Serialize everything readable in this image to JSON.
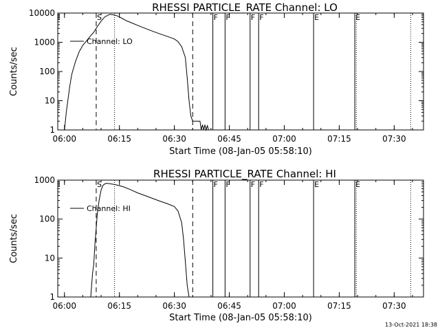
{
  "chart_data": [
    {
      "type": "line",
      "title": "RHESSI PARTICLE_RATE Channel: LO",
      "xlabel": "Start Time (08-Jan-05 05:58:10)",
      "ylabel": "Counts/sec",
      "ylog": true,
      "xlim": [
        "05:58:10",
        "07:38:00"
      ],
      "ylim": [
        1,
        10000
      ],
      "xticks": [
        "06:00",
        "06:15",
        "06:30",
        "06:45",
        "07:00",
        "07:15",
        "07:30"
      ],
      "yticks": [
        "1",
        "10",
        "100",
        "1000",
        "10000"
      ],
      "legend": {
        "entries": [
          "Channel: LO"
        ],
        "placement": "top-left"
      },
      "series": [
        {
          "name": "Channel: LO",
          "x": [
            "06:00:00",
            "06:00:30",
            "06:01:00",
            "06:01:30",
            "06:02:00",
            "06:03:00",
            "06:04:00",
            "06:05:00",
            "06:06:00",
            "06:07:00",
            "06:08:00",
            "06:09:00",
            "06:10:00",
            "06:11:00",
            "06:12:00",
            "06:12:30",
            "06:13:00",
            "06:14:00",
            "06:15:00",
            "06:16:00",
            "06:17:00",
            "06:18:00",
            "06:20:00",
            "06:22:00",
            "06:24:00",
            "06:26:00",
            "06:28:00",
            "06:30:00",
            "06:31:00",
            "06:32:00",
            "06:33:00",
            "06:33:30",
            "06:34:00",
            "06:34:30",
            "06:35:00",
            "06:36:00",
            "06:37:00",
            "06:37:20",
            "06:37:40",
            "06:38:00",
            "06:38:20",
            "06:38:40",
            "06:39:00",
            "06:39:20"
          ],
          "y": [
            1,
            4,
            12,
            35,
            80,
            220,
            470,
            790,
            1100,
            1600,
            2200,
            3500,
            5300,
            7400,
            8600,
            9000,
            8900,
            8400,
            7400,
            6300,
            5400,
            4800,
            3800,
            3000,
            2400,
            1950,
            1600,
            1300,
            1050,
            700,
            300,
            60,
            10,
            3,
            2,
            2,
            2,
            1,
            1.5,
            1,
            1.5,
            1,
            1.4,
            1
          ]
        }
      ],
      "flags": [
        "F",
        "F",
        "F",
        "F",
        "E"
      ],
      "markers": [
        "S"
      ]
    },
    {
      "type": "line",
      "title": "RHESSI PARTICLE_RATE Channel: HI",
      "xlabel": "Start Time (08-Jan-05 05:58:10)",
      "ylabel": "Counts/sec",
      "ylog": true,
      "xlim": [
        "05:58:10",
        "07:38:00"
      ],
      "ylim": [
        1,
        1000
      ],
      "xticks": [
        "06:00",
        "06:15",
        "06:30",
        "06:45",
        "07:00",
        "07:15",
        "07:30"
      ],
      "yticks": [
        "1",
        "10",
        "100",
        "1000"
      ],
      "legend": {
        "entries": [
          "Channel: HI"
        ],
        "placement": "top-left"
      },
      "series": [
        {
          "name": "Channel: HI",
          "x": [
            "06:07:10",
            "06:07:40",
            "06:08:00",
            "06:08:20",
            "06:08:40",
            "06:09:00",
            "06:09:30",
            "06:10:00",
            "06:10:30",
            "06:11:00",
            "06:11:30",
            "06:12:00",
            "06:13:00",
            "06:14:00",
            "06:16:00",
            "06:18:00",
            "06:20:00",
            "06:22:00",
            "06:24:00",
            "06:26:00",
            "06:28:00",
            "06:30:00",
            "06:31:00",
            "06:32:00",
            "06:32:30",
            "06:33:00",
            "06:33:30",
            "06:34:00"
          ],
          "y": [
            1,
            4,
            7,
            25,
            60,
            150,
            320,
            560,
            730,
            800,
            830,
            820,
            790,
            760,
            680,
            570,
            470,
            400,
            340,
            290,
            250,
            210,
            160,
            80,
            30,
            8,
            2,
            1
          ]
        }
      ],
      "flags": [
        "F",
        "F",
        "F",
        "F",
        "E"
      ],
      "markers": [
        "S"
      ]
    }
  ],
  "timestamp": "13-Oct-2021 18:38"
}
